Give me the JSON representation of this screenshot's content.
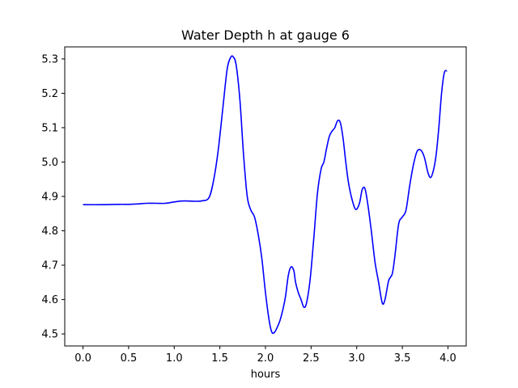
{
  "chart_data": {
    "type": "line",
    "title": "Water Depth h at gauge 6",
    "xlabel": "hours",
    "ylabel": "",
    "xlim": [
      -0.2,
      4.2
    ],
    "ylim": [
      4.465,
      5.335
    ],
    "xticks": [
      0.0,
      0.5,
      1.0,
      1.5,
      2.0,
      2.5,
      3.0,
      3.5,
      4.0
    ],
    "xtick_labels": [
      "0.0",
      "0.5",
      "1.0",
      "1.5",
      "2.0",
      "2.5",
      "3.0",
      "3.5",
      "4.0"
    ],
    "yticks": [
      4.5,
      4.6,
      4.7,
      4.8,
      4.9,
      5.0,
      5.1,
      5.2,
      5.3
    ],
    "ytick_labels": [
      "4.5",
      "4.6",
      "4.7",
      "4.8",
      "4.9",
      "5.0",
      "5.1",
      "5.2",
      "5.3"
    ],
    "grid": false,
    "series": [
      {
        "color": "#0000ff",
        "x": [
          0.0,
          0.2,
          0.4,
          0.5,
          0.6,
          0.7,
          0.8,
          0.9,
          1.0,
          1.1,
          1.2,
          1.3,
          1.38,
          1.43,
          1.48,
          1.53,
          1.58,
          1.62,
          1.65,
          1.68,
          1.72,
          1.76,
          1.8,
          1.84,
          1.88,
          1.92,
          1.96,
          2.0,
          2.04,
          2.07,
          2.1,
          2.13,
          2.16,
          2.19,
          2.22,
          2.25,
          2.28,
          2.31,
          2.33,
          2.36,
          2.39,
          2.42,
          2.45,
          2.49,
          2.53,
          2.57,
          2.61,
          2.64,
          2.67,
          2.7,
          2.73,
          2.76,
          2.79,
          2.82,
          2.85,
          2.88,
          2.91,
          2.95,
          2.99,
          3.03,
          3.06,
          3.09,
          3.12,
          3.16,
          3.2,
          3.24,
          3.28,
          3.31,
          3.35,
          3.39,
          3.42,
          3.46,
          3.5,
          3.54,
          3.58,
          3.62,
          3.66,
          3.7,
          3.74,
          3.78,
          3.81,
          3.84,
          3.87,
          3.9,
          3.93,
          3.96,
          3.99
        ],
        "y": [
          4.876,
          4.876,
          4.877,
          4.877,
          4.878,
          4.88,
          4.88,
          4.88,
          4.884,
          4.887,
          4.886,
          4.887,
          4.896,
          4.945,
          5.03,
          5.15,
          5.27,
          5.305,
          5.305,
          5.28,
          5.18,
          5.02,
          4.9,
          4.86,
          4.84,
          4.79,
          4.72,
          4.62,
          4.54,
          4.505,
          4.505,
          4.52,
          4.54,
          4.57,
          4.61,
          4.67,
          4.695,
          4.685,
          4.65,
          4.62,
          4.6,
          4.578,
          4.59,
          4.66,
          4.78,
          4.91,
          4.98,
          5.0,
          5.04,
          5.075,
          5.09,
          5.1,
          5.12,
          5.115,
          5.07,
          5.0,
          4.94,
          4.89,
          4.862,
          4.88,
          4.92,
          4.923,
          4.88,
          4.8,
          4.71,
          4.65,
          4.59,
          4.6,
          4.655,
          4.675,
          4.73,
          4.82,
          4.84,
          4.86,
          4.93,
          4.99,
          5.03,
          5.035,
          5.015,
          4.97,
          4.955,
          4.975,
          5.02,
          5.1,
          5.2,
          5.26,
          5.265
        ]
      }
    ]
  }
}
